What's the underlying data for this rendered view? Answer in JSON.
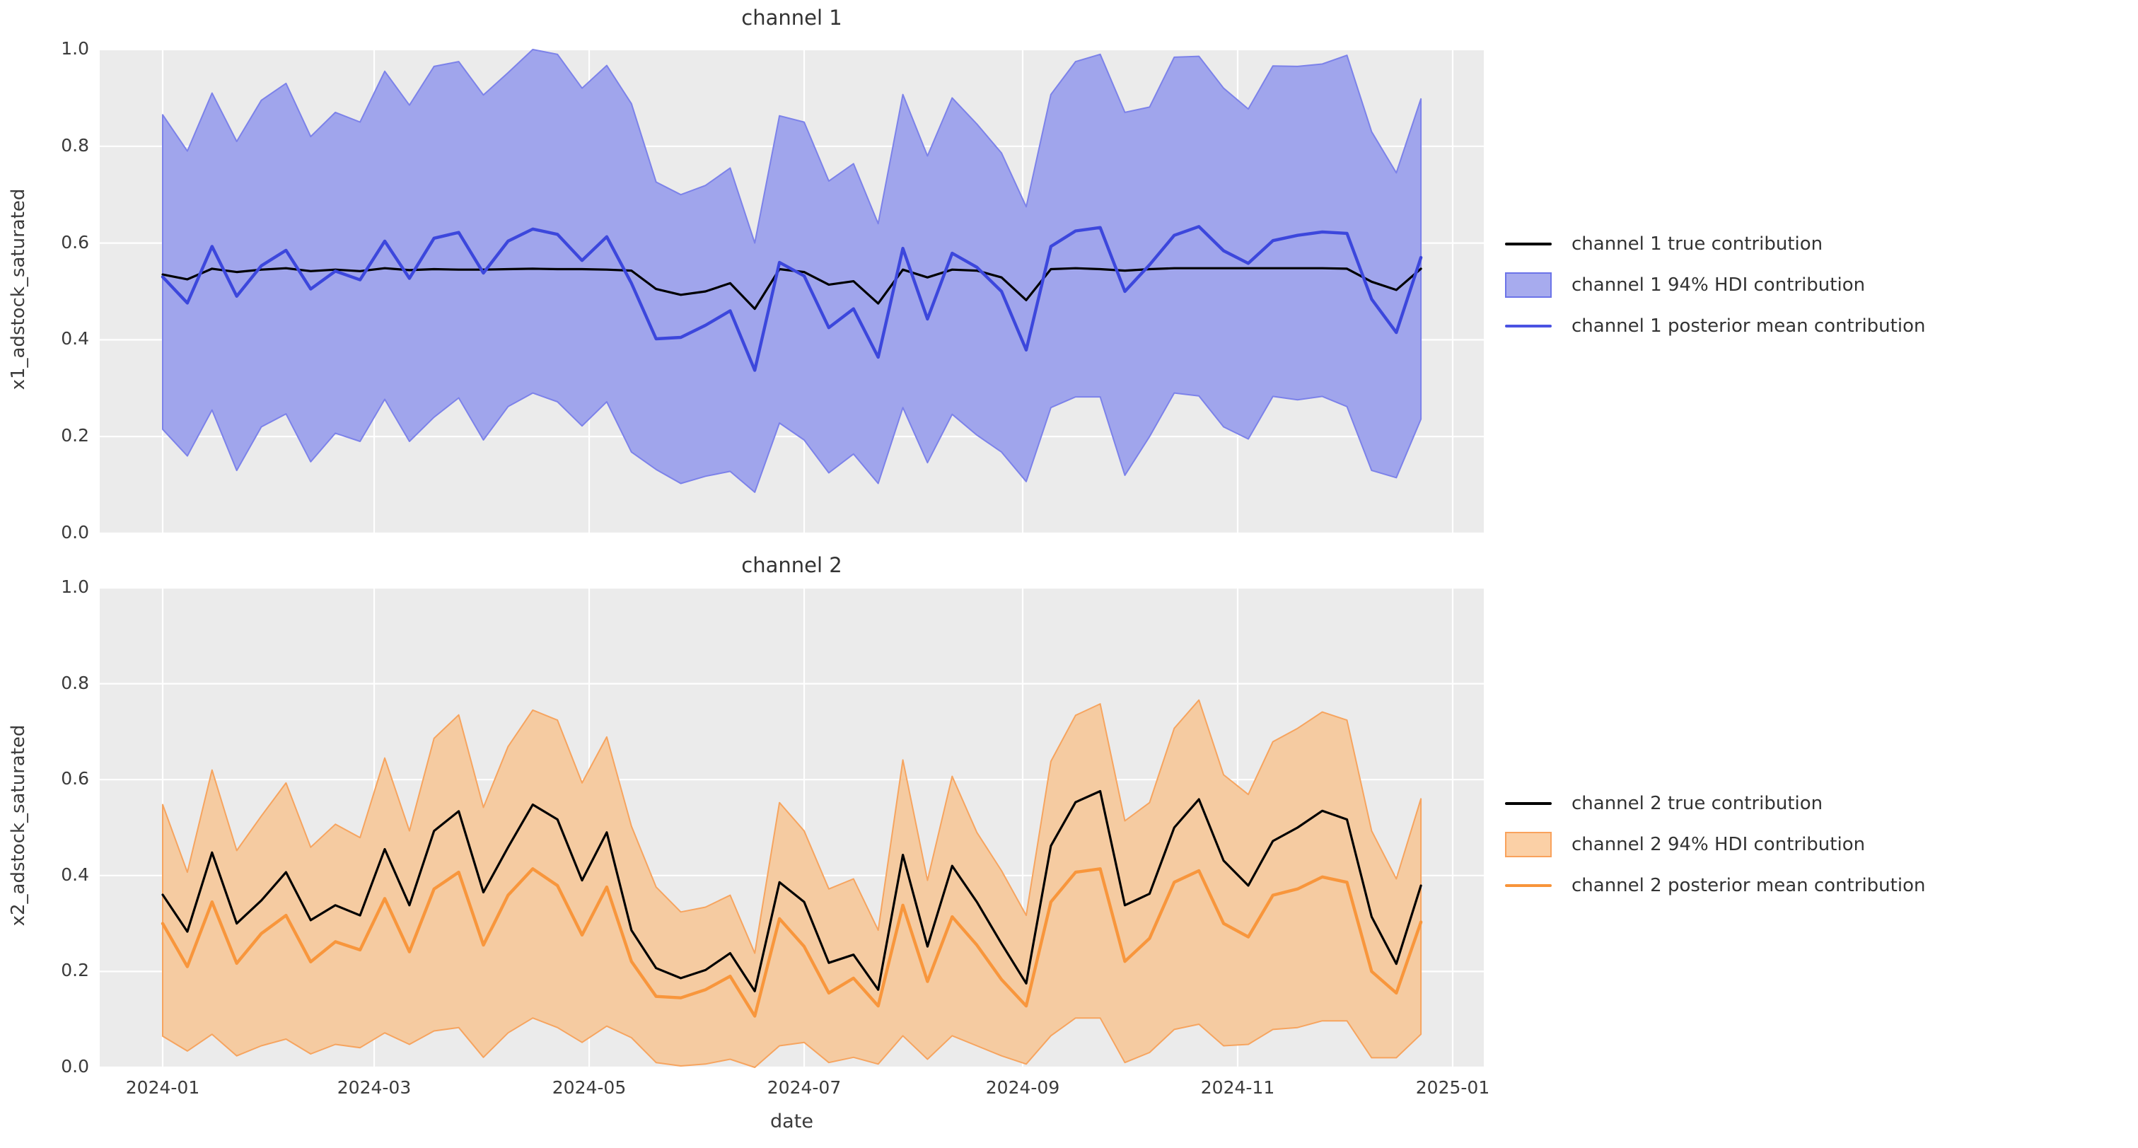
{
  "figure": {
    "background": "#ffffff",
    "plot_background": "#ebebeb",
    "grid_color": "#ffffff",
    "text_color": "#3b3b3b",
    "x_axis_label": "date"
  },
  "x_axis": {
    "label": "date",
    "tick_labels": [
      "2024-01",
      "2024-03",
      "2024-05",
      "2024-07",
      "2024-09",
      "2024-11",
      "2025-01"
    ],
    "tick_day_offsets": [
      0,
      60,
      121,
      182,
      244,
      305,
      366
    ],
    "start_date": "2024-01-01",
    "step_days": 7,
    "n_points": 52
  },
  "chart_data": [
    {
      "type": "line",
      "title": "channel 1",
      "ylabel": "x1_adstock_saturated",
      "xlabel": "",
      "ylim": [
        0,
        1
      ],
      "yticks": [
        0.0,
        0.2,
        0.4,
        0.6,
        0.8,
        1.0
      ],
      "grid": true,
      "legend_position": "right",
      "colors": {
        "true_line": "#000000",
        "posterior_line": "#3c47dc",
        "band_fill": "#a0a5ec",
        "band_edge": "#7c82e9"
      },
      "legend": [
        {
          "label": "channel 1 true contribution",
          "swatch": "line",
          "color": "#000000"
        },
        {
          "label": "channel 1 94% HDI contribution",
          "swatch": "patch",
          "fill": "#a7abee",
          "edge": "#6c74e8"
        },
        {
          "label": "channel 1 posterior mean contribution",
          "swatch": "line",
          "color": "#4a52e2"
        }
      ],
      "series": [
        {
          "name": "channel 1 true contribution",
          "kind": "line",
          "values": [
            0.535,
            0.525,
            0.547,
            0.54,
            0.545,
            0.548,
            0.542,
            0.545,
            0.542,
            0.548,
            0.544,
            0.546,
            0.545,
            0.545,
            0.546,
            0.547,
            0.546,
            0.546,
            0.545,
            0.543,
            0.505,
            0.493,
            0.5,
            0.517,
            0.464,
            0.546,
            0.54,
            0.514,
            0.521,
            0.475,
            0.545,
            0.529,
            0.545,
            0.543,
            0.529,
            0.482,
            0.546,
            0.548,
            0.546,
            0.543,
            0.546,
            0.548,
            0.548,
            0.548,
            0.548,
            0.548,
            0.548,
            0.548,
            0.547,
            0.52,
            0.503,
            0.547
          ]
        },
        {
          "name": "channel 1 posterior mean contribution",
          "kind": "line",
          "values": [
            0.53,
            0.476,
            0.593,
            0.49,
            0.553,
            0.585,
            0.505,
            0.542,
            0.524,
            0.604,
            0.527,
            0.61,
            0.622,
            0.538,
            0.604,
            0.629,
            0.618,
            0.564,
            0.613,
            0.517,
            0.402,
            0.405,
            0.43,
            0.46,
            0.337,
            0.56,
            0.532,
            0.425,
            0.464,
            0.364,
            0.589,
            0.443,
            0.579,
            0.55,
            0.5,
            0.379,
            0.593,
            0.625,
            0.632,
            0.5,
            0.555,
            0.616,
            0.634,
            0.584,
            0.558,
            0.605,
            0.616,
            0.623,
            0.62,
            0.484,
            0.415,
            0.57
          ]
        },
        {
          "name": "channel 1 94% HDI contribution",
          "kind": "band",
          "upper": [
            0.865,
            0.79,
            0.91,
            0.81,
            0.895,
            0.93,
            0.82,
            0.87,
            0.85,
            0.955,
            0.885,
            0.965,
            0.975,
            0.906,
            0.952,
            1.0,
            0.99,
            0.92,
            0.967,
            0.888,
            0.726,
            0.7,
            0.719,
            0.755,
            0.6,
            0.863,
            0.85,
            0.728,
            0.764,
            0.64,
            0.907,
            0.78,
            0.9,
            0.846,
            0.786,
            0.675,
            0.907,
            0.975,
            0.99,
            0.87,
            0.881,
            0.984,
            0.986,
            0.92,
            0.877,
            0.966,
            0.965,
            0.97,
            0.988,
            0.83,
            0.745,
            0.898
          ],
          "lower": [
            0.215,
            0.16,
            0.255,
            0.13,
            0.22,
            0.247,
            0.148,
            0.207,
            0.19,
            0.277,
            0.19,
            0.24,
            0.28,
            0.193,
            0.262,
            0.29,
            0.272,
            0.222,
            0.272,
            0.168,
            0.132,
            0.103,
            0.118,
            0.128,
            0.085,
            0.228,
            0.193,
            0.125,
            0.164,
            0.103,
            0.26,
            0.146,
            0.246,
            0.203,
            0.168,
            0.107,
            0.26,
            0.282,
            0.282,
            0.12,
            0.2,
            0.29,
            0.284,
            0.22,
            0.195,
            0.283,
            0.276,
            0.283,
            0.262,
            0.13,
            0.115,
            0.236
          ]
        }
      ]
    },
    {
      "type": "line",
      "title": "channel 2",
      "ylabel": "x2_adstock_saturated",
      "xlabel": "date",
      "ylim": [
        0,
        1
      ],
      "yticks": [
        0.0,
        0.2,
        0.4,
        0.6,
        0.8,
        1.0
      ],
      "grid": true,
      "legend_position": "right",
      "colors": {
        "true_line": "#000000",
        "posterior_line": "#f8963c",
        "band_fill": "#f5cba1",
        "band_edge": "#f6a45f"
      },
      "legend": [
        {
          "label": "channel 2 true contribution",
          "swatch": "line",
          "color": "#000000"
        },
        {
          "label": "channel 2 94% HDI contribution",
          "swatch": "patch",
          "fill": "#fbd0a6",
          "edge": "#f9a25c"
        },
        {
          "label": "channel 2 posterior mean contribution",
          "swatch": "line",
          "color": "#f8943a"
        }
      ],
      "series": [
        {
          "name": "channel 2 true contribution",
          "kind": "line",
          "values": [
            0.36,
            0.283,
            0.448,
            0.3,
            0.348,
            0.407,
            0.307,
            0.338,
            0.317,
            0.455,
            0.338,
            0.493,
            0.534,
            0.365,
            0.459,
            0.548,
            0.517,
            0.39,
            0.49,
            0.286,
            0.207,
            0.186,
            0.203,
            0.238,
            0.159,
            0.386,
            0.345,
            0.218,
            0.235,
            0.162,
            0.443,
            0.252,
            0.42,
            0.345,
            0.258,
            0.175,
            0.462,
            0.553,
            0.576,
            0.338,
            0.362,
            0.5,
            0.559,
            0.431,
            0.379,
            0.472,
            0.5,
            0.535,
            0.517,
            0.314,
            0.216,
            0.379
          ]
        },
        {
          "name": "channel 2 posterior mean contribution",
          "kind": "line",
          "values": [
            0.3,
            0.21,
            0.345,
            0.217,
            0.279,
            0.317,
            0.22,
            0.262,
            0.245,
            0.352,
            0.241,
            0.372,
            0.407,
            0.255,
            0.359,
            0.414,
            0.379,
            0.276,
            0.376,
            0.221,
            0.148,
            0.145,
            0.162,
            0.19,
            0.107,
            0.31,
            0.252,
            0.155,
            0.186,
            0.128,
            0.338,
            0.179,
            0.314,
            0.255,
            0.183,
            0.128,
            0.345,
            0.407,
            0.414,
            0.221,
            0.269,
            0.386,
            0.41,
            0.3,
            0.272,
            0.359,
            0.372,
            0.397,
            0.386,
            0.2,
            0.155,
            0.303
          ]
        },
        {
          "name": "channel 2 94% HDI contribution",
          "kind": "band",
          "upper": [
            0.548,
            0.407,
            0.62,
            0.452,
            0.524,
            0.593,
            0.459,
            0.507,
            0.479,
            0.645,
            0.493,
            0.686,
            0.735,
            0.542,
            0.669,
            0.745,
            0.724,
            0.593,
            0.689,
            0.503,
            0.376,
            0.324,
            0.334,
            0.359,
            0.238,
            0.552,
            0.493,
            0.372,
            0.393,
            0.286,
            0.641,
            0.39,
            0.607,
            0.49,
            0.41,
            0.317,
            0.638,
            0.734,
            0.758,
            0.514,
            0.552,
            0.707,
            0.766,
            0.61,
            0.569,
            0.679,
            0.707,
            0.741,
            0.724,
            0.493,
            0.393,
            0.56
          ],
          "lower": [
            0.065,
            0.034,
            0.069,
            0.024,
            0.045,
            0.059,
            0.028,
            0.048,
            0.041,
            0.072,
            0.048,
            0.076,
            0.083,
            0.021,
            0.072,
            0.103,
            0.083,
            0.052,
            0.086,
            0.062,
            0.01,
            0.003,
            0.007,
            0.017,
            0.0,
            0.045,
            0.052,
            0.01,
            0.021,
            0.007,
            0.066,
            0.017,
            0.066,
            0.045,
            0.024,
            0.007,
            0.066,
            0.103,
            0.103,
            0.01,
            0.031,
            0.079,
            0.09,
            0.045,
            0.048,
            0.079,
            0.083,
            0.097,
            0.097,
            0.02,
            0.02,
            0.069
          ]
        }
      ]
    }
  ]
}
